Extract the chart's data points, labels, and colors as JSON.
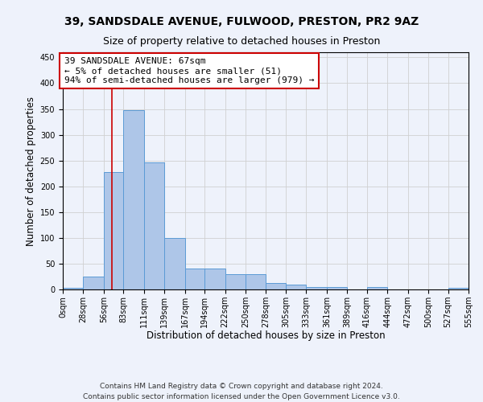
{
  "title_line1": "39, SANDSDALE AVENUE, FULWOOD, PRESTON, PR2 9AZ",
  "title_line2": "Size of property relative to detached houses in Preston",
  "xlabel": "Distribution of detached houses by size in Preston",
  "ylabel": "Number of detached properties",
  "bar_values": [
    3,
    25,
    228,
    347,
    246,
    100,
    40,
    40,
    30,
    30,
    13,
    10,
    5,
    5,
    0,
    4,
    0,
    0,
    0,
    3
  ],
  "bar_color": "#aec6e8",
  "bar_edge_color": "#5b9bd5",
  "bin_edges": [
    0,
    28,
    56,
    83,
    111,
    139,
    167,
    194,
    222,
    250,
    278,
    305,
    333,
    361,
    389,
    416,
    444,
    472,
    500,
    527,
    555
  ],
  "tick_labels": [
    "0sqm",
    "28sqm",
    "56sqm",
    "83sqm",
    "111sqm",
    "139sqm",
    "167sqm",
    "194sqm",
    "222sqm",
    "250sqm",
    "278sqm",
    "305sqm",
    "333sqm",
    "361sqm",
    "389sqm",
    "416sqm",
    "444sqm",
    "472sqm",
    "500sqm",
    "527sqm",
    "555sqm"
  ],
  "ylim": [
    0,
    460
  ],
  "yticks": [
    0,
    50,
    100,
    150,
    200,
    250,
    300,
    350,
    400,
    450
  ],
  "grid_color": "#d0d0d0",
  "background_color": "#eef2fb",
  "annotation_text": "39 SANDSDALE AVENUE: 67sqm\n← 5% of detached houses are smaller (51)\n94% of semi-detached houses are larger (979) →",
  "annotation_box_color": "#ffffff",
  "annotation_box_edge": "#cc0000",
  "vline_x": 67,
  "vline_color": "#cc0000",
  "footer_line1": "Contains HM Land Registry data © Crown copyright and database right 2024.",
  "footer_line2": "Contains public sector information licensed under the Open Government Licence v3.0.",
  "title_fontsize": 10,
  "subtitle_fontsize": 9,
  "axis_label_fontsize": 8.5,
  "tick_fontsize": 7,
  "annotation_fontsize": 8,
  "footer_fontsize": 6.5
}
